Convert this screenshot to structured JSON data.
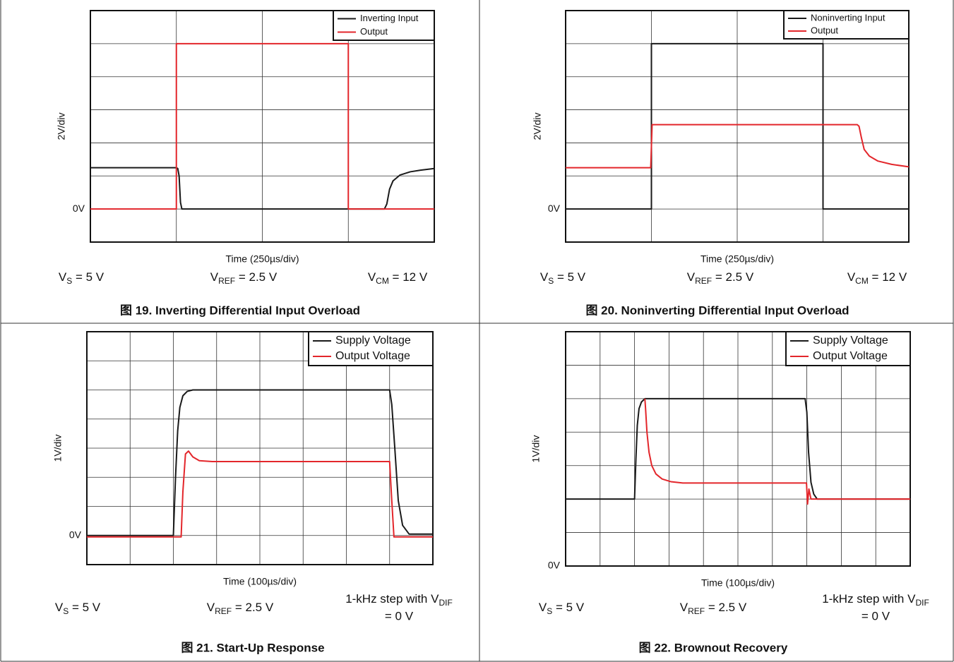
{
  "chart_data": [
    {
      "type": "line",
      "caption": "图 19. Inverting Differential Input Overload",
      "x_label": "Time (250µs/div)",
      "y_label": "2V/div",
      "xlim": [
        0,
        1000
      ],
      "ylim": [
        -2,
        12
      ],
      "yticks": [
        {
          "value": 0,
          "label": "0V"
        }
      ],
      "xgrid": [
        0,
        250,
        500,
        750,
        1000
      ],
      "ygrid": [
        -2,
        0,
        2,
        4,
        6,
        8,
        10,
        12
      ],
      "legend": "upper right",
      "series": [
        {
          "name": "Inverting Input",
          "color": "#1a1a1a",
          "x": [
            0,
            250,
            254,
            258,
            262,
            266,
            855,
            862,
            870,
            880,
            900,
            930,
            960,
            1000
          ],
          "values": [
            2.5,
            2.5,
            2.45,
            2.0,
            0.4,
            0,
            0,
            0.3,
            1.2,
            1.7,
            2.05,
            2.25,
            2.35,
            2.45
          ]
        },
        {
          "name": "Output",
          "color": "#e3262b",
          "x": [
            0,
            250,
            250,
            750,
            750,
            1000
          ],
          "values": [
            0,
            0,
            10,
            10,
            0,
            0
          ]
        }
      ],
      "conditions": [
        {
          "prefix": "V",
          "subscript": "S",
          "suffix": " = 5 V"
        },
        {
          "prefix": "V",
          "subscript": "REF",
          "suffix": " = 2.5 V"
        },
        {
          "prefix": "V",
          "subscript": "CM",
          "suffix": " = 12 V"
        }
      ]
    },
    {
      "type": "line",
      "caption": "图 20. Noninverting Differential Input Overload",
      "x_label": "Time (250µs/div)",
      "y_label": "2V/div",
      "xlim": [
        0,
        1000
      ],
      "ylim": [
        -2,
        12
      ],
      "yticks": [
        {
          "value": 0,
          "label": "0V"
        }
      ],
      "xgrid": [
        0,
        250,
        500,
        750,
        1000
      ],
      "ygrid": [
        -2,
        0,
        2,
        4,
        6,
        8,
        10,
        12
      ],
      "legend": "upper right",
      "series": [
        {
          "name": "Noninverting Input",
          "color": "#1a1a1a",
          "x": [
            0,
            250,
            250,
            750,
            750,
            1000
          ],
          "values": [
            0,
            0,
            10,
            10,
            0,
            0
          ]
        },
        {
          "name": "Output",
          "color": "#e3262b",
          "x": [
            0,
            248,
            252,
            850,
            855,
            862,
            870,
            885,
            910,
            950,
            1000
          ],
          "values": [
            2.5,
            2.5,
            5.1,
            5.1,
            5.0,
            4.3,
            3.6,
            3.2,
            2.9,
            2.7,
            2.55
          ]
        }
      ],
      "conditions": [
        {
          "prefix": "V",
          "subscript": "S",
          "suffix": " = 5 V"
        },
        {
          "prefix": "V",
          "subscript": "REF",
          "suffix": " = 2.5 V"
        },
        {
          "prefix": "V",
          "subscript": "CM",
          "suffix": " = 12 V"
        }
      ]
    },
    {
      "type": "line",
      "caption": "图 21. Start-Up Response",
      "x_label": "Time (100µs/div)",
      "y_label": "1V/div",
      "xlim": [
        0,
        800
      ],
      "ylim": [
        -1,
        7
      ],
      "yticks": [
        {
          "value": 0,
          "label": "0V"
        }
      ],
      "xgrid": [
        0,
        100,
        200,
        300,
        400,
        500,
        600,
        700,
        800
      ],
      "ygrid": [
        -1,
        0,
        1,
        2,
        3,
        4,
        5,
        6,
        7
      ],
      "legend": "upper right",
      "series": [
        {
          "name": "Supply Voltage",
          "color": "#1a1a1a",
          "x": [
            0,
            200,
            205,
            210,
            215,
            222,
            232,
            245,
            260,
            700,
            705,
            712,
            720,
            730,
            745,
            800
          ],
          "values": [
            0,
            0,
            2,
            3.6,
            4.4,
            4.8,
            4.95,
            5.0,
            5.0,
            5.0,
            4.5,
            3.0,
            1.2,
            0.35,
            0.05,
            0.05
          ]
        },
        {
          "name": "Output Voltage",
          "color": "#e3262b",
          "x": [
            0,
            218,
            222,
            228,
            235,
            245,
            260,
            290,
            700,
            705,
            710,
            800
          ],
          "values": [
            -0.05,
            -0.05,
            1.5,
            2.8,
            2.9,
            2.7,
            2.57,
            2.54,
            2.54,
            1.2,
            -0.05,
            -0.05
          ]
        }
      ],
      "conditions": [
        {
          "prefix": "V",
          "subscript": "S",
          "suffix": " = 5 V"
        },
        {
          "prefix": "V",
          "subscript": "REF",
          "suffix": " = 2.5 V"
        },
        {
          "prefix": "1-kHz step with V",
          "subscript": "DIF",
          "suffix": "= 0 V"
        }
      ]
    },
    {
      "type": "line",
      "caption": "图 22. Brownout Recovery",
      "x_label": "Time (100µs/div)",
      "y_label": "1V/div",
      "xlim": [
        0,
        1000
      ],
      "ylim": [
        0,
        7
      ],
      "yticks": [
        {
          "value": 0,
          "label": "0V"
        }
      ],
      "xgrid": [
        0,
        100,
        200,
        300,
        400,
        500,
        600,
        700,
        800,
        900,
        1000
      ],
      "ygrid": [
        0,
        1,
        2,
        3,
        4,
        5,
        6,
        7
      ],
      "legend": "upper right",
      "series": [
        {
          "name": "Supply Voltage",
          "color": "#1a1a1a",
          "x": [
            0,
            200,
            204,
            208,
            213,
            220,
            230,
            240,
            695,
            700,
            705,
            712,
            720,
            730,
            1000
          ],
          "values": [
            2,
            2,
            3.2,
            4.2,
            4.7,
            4.9,
            5.0,
            5.0,
            5.0,
            4.6,
            3.4,
            2.5,
            2.15,
            2.0,
            2.0
          ]
        },
        {
          "name": "Output Voltage",
          "color": "#e3262b",
          "x": [
            230,
            232,
            236,
            242,
            250,
            262,
            280,
            305,
            340,
            695,
            699,
            702,
            706,
            712,
            1000
          ],
          "values": [
            5.0,
            4.7,
            4.0,
            3.4,
            3.0,
            2.75,
            2.6,
            2.52,
            2.48,
            2.48,
            2.48,
            1.85,
            2.3,
            2.0,
            2.0
          ]
        }
      ],
      "conditions": [
        {
          "prefix": "V",
          "subscript": "S",
          "suffix": " = 5 V"
        },
        {
          "prefix": "V",
          "subscript": "REF",
          "suffix": " = 2.5 V"
        },
        {
          "prefix": "1-kHz step with V",
          "subscript": "DIF",
          "suffix": "= 0 V"
        }
      ]
    }
  ]
}
